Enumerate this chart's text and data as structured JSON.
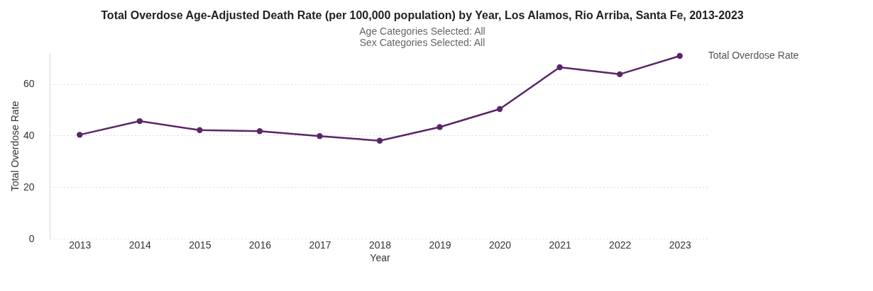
{
  "chart_data": {
    "type": "line",
    "title": "Total Overdose Age-Adjusted Death Rate (per 100,000 population) by Year, Los Alamos, Rio Arriba, Santa Fe, 2013-2023",
    "subtitle": "Age Categories Selected: All\nSex Categories Selected: All",
    "xlabel": "Year",
    "ylabel": "Total Overdose Rate",
    "categories": [
      "2013",
      "2014",
      "2015",
      "2016",
      "2017",
      "2018",
      "2019",
      "2020",
      "2021",
      "2022",
      "2023"
    ],
    "series": [
      {
        "name": "Total Overdose Rate",
        "color": "#5b2567",
        "values": [
          40.3,
          45.6,
          42.1,
          41.7,
          39.8,
          38.0,
          43.3,
          50.3,
          66.5,
          63.8,
          70.9
        ]
      }
    ],
    "ylim": [
      0,
      72
    ],
    "yticks": [
      0,
      20,
      40,
      60
    ],
    "grid": "y",
    "marker": "circle",
    "line_style": "solid"
  }
}
